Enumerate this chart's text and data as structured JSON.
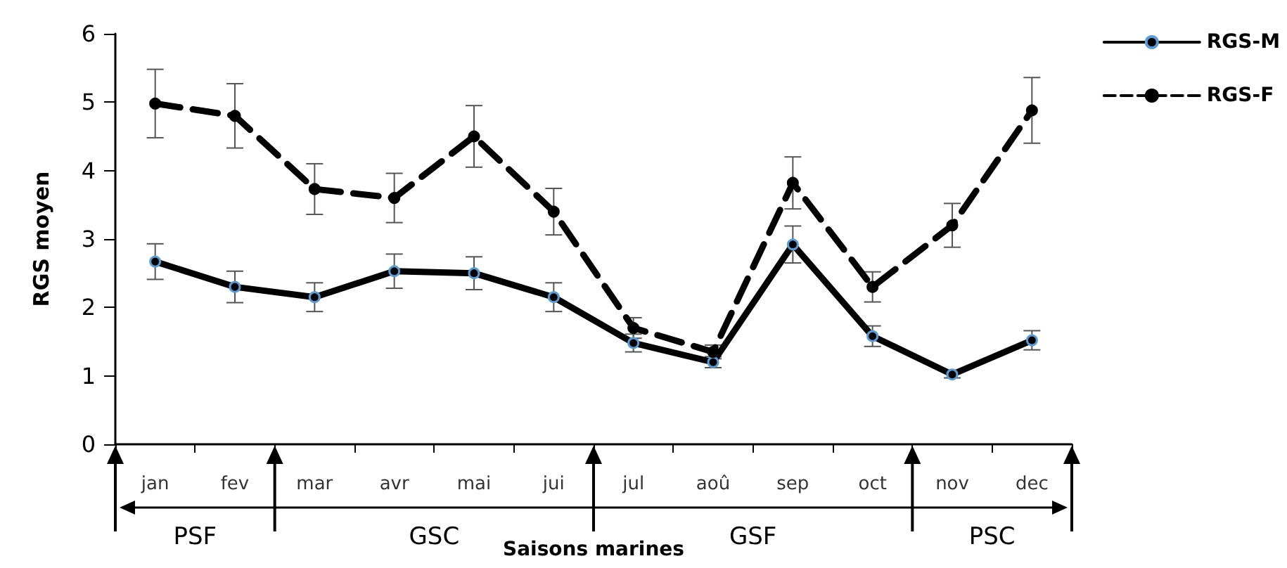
{
  "chart_data": {
    "type": "line",
    "xlabel": "Saisons marines",
    "ylabel": "RGS moyen",
    "categories": [
      "jan",
      "fev",
      "mar",
      "avr",
      "mai",
      "jui",
      "jul",
      "aoû",
      "sep",
      "oct",
      "nov",
      "dec"
    ],
    "series": [
      {
        "name": "RGS-M",
        "color": "#000000",
        "line_style": "solid",
        "values": [
          2.67,
          2.3,
          2.15,
          2.53,
          2.5,
          2.15,
          1.48,
          1.2,
          2.92,
          1.58,
          1.02,
          1.52
        ],
        "errors": [
          0.26,
          0.23,
          0.21,
          0.25,
          0.24,
          0.21,
          0.13,
          0.08,
          0.27,
          0.15,
          0.05,
          0.14
        ]
      },
      {
        "name": "RGS-F",
        "color": "#000000",
        "line_style": "dashed",
        "values": [
          4.98,
          4.8,
          3.73,
          3.6,
          4.5,
          3.4,
          1.7,
          1.35,
          3.82,
          2.3,
          3.2,
          4.88
        ],
        "errors": [
          0.5,
          0.47,
          0.37,
          0.36,
          0.45,
          0.34,
          0.15,
          0.1,
          0.38,
          0.22,
          0.32,
          0.48
        ]
      }
    ],
    "ylim": [
      0,
      6
    ],
    "yticks": [
      0,
      1,
      2,
      3,
      4,
      5,
      6
    ],
    "grid": false,
    "legend": "top right",
    "marker": "circle",
    "annotations": [
      "PSF",
      "GSC",
      "GSF",
      "PSC"
    ]
  }
}
